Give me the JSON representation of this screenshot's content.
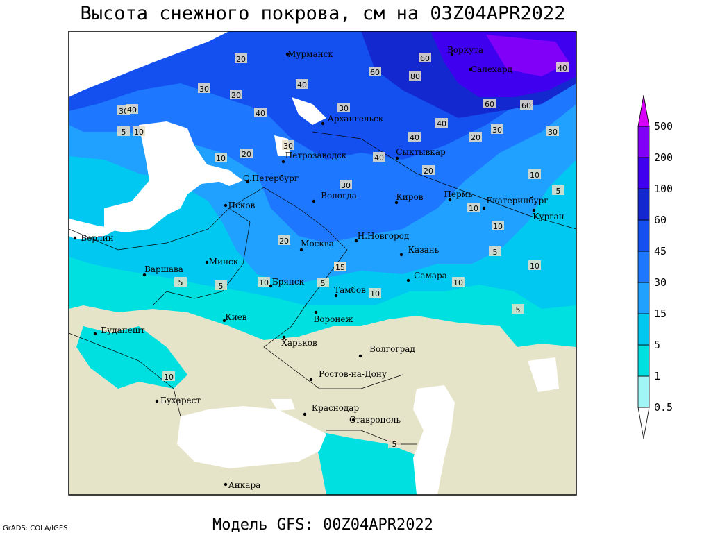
{
  "header": {
    "title": "Высота снежного покрова, см на 03Z04APR2022",
    "subtitle": "Модель GFS: 00Z04APR2022",
    "credit": "GrADS: COLA/IGES"
  },
  "colorbar": {
    "levels": [
      0.5,
      1,
      5,
      15,
      30,
      45,
      60,
      100,
      200,
      500
    ],
    "colors": [
      "#ffffff",
      "#a0f5f5",
      "#00e0e0",
      "#00c8f0",
      "#20a0ff",
      "#1e78ff",
      "#1450f0",
      "#1428d0",
      "#4000f0",
      "#8000f8",
      "#d800f8"
    ]
  },
  "cities": [
    "Мурманск",
    "Воркута",
    "Салехард",
    "Архангельск",
    "Петрозаводск",
    "Сыктывкар",
    "С.Петербург",
    "Вологда",
    "Киров",
    "Пермь",
    "Екатеринбург",
    "Курган",
    "Псков",
    "Берлин",
    "Н.Новгород",
    "Москва",
    "Казань",
    "Минск",
    "Варшава",
    "Самара",
    "Брянск",
    "Тамбов",
    "Киев",
    "Воронеж",
    "Будапешт",
    "Харьков",
    "Волгоград",
    "Ростов-на-Дону",
    "Бухарест",
    "Краснодар",
    "Ставрополь",
    "Анкара"
  ],
  "contour_labels": [
    20,
    40,
    60,
    80,
    40,
    30,
    30,
    40,
    30,
    5,
    10,
    20,
    40,
    30,
    40,
    60,
    40,
    30,
    30,
    20,
    20,
    10,
    20,
    30,
    40,
    10,
    5,
    10,
    10,
    20,
    10,
    5,
    10,
    10,
    5,
    5,
    5,
    15,
    5,
    10,
    10,
    10,
    5,
    60,
    60
  ]
}
